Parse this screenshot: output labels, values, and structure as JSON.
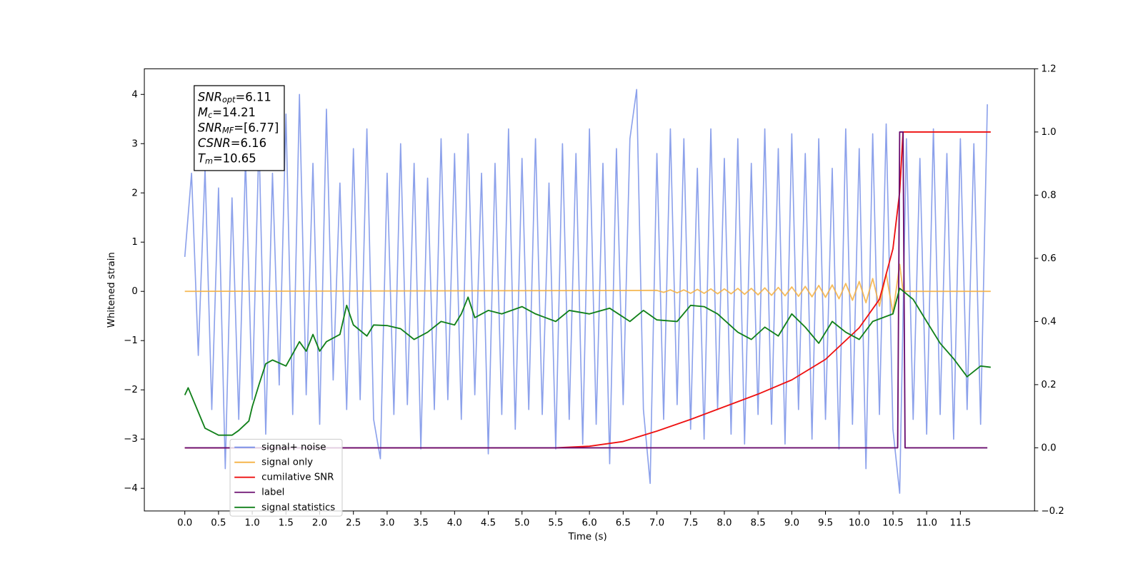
{
  "chart_data": {
    "type": "line",
    "xlabel": "Time (s)",
    "ylabel": "Whitened strain",
    "xlim": [
      -0.6,
      12.6
    ],
    "xticks": [
      {
        "value": 0,
        "label": "0.0"
      },
      0.5,
      {
        "value": 1,
        "label": "1.0"
      },
      1.5,
      {
        "value": 2,
        "label": "2.0"
      },
      2.5,
      {
        "value": 3,
        "label": "3.0"
      },
      3.5,
      {
        "value": 4,
        "label": "4.0"
      },
      4.5,
      {
        "value": 5,
        "label": "5.0"
      },
      5.5,
      {
        "value": 6,
        "label": "6.0"
      },
      6.5,
      {
        "value": 7,
        "label": "7.0"
      },
      7.5,
      {
        "value": 8,
        "label": "8.0"
      },
      8.5,
      {
        "value": 9,
        "label": "9.0"
      },
      9.5,
      {
        "value": 10,
        "label": "10.0"
      },
      10.5,
      {
        "value": 11,
        "label": "11.0"
      },
      11.5
    ],
    "ylim": [
      -4.46,
      4.52
    ],
    "yticks": [
      {
        "value": -4,
        "label": "−4"
      },
      {
        "value": -3,
        "label": "−3"
      },
      {
        "value": -2,
        "label": "−2"
      },
      {
        "value": -1,
        "label": "−1"
      },
      0,
      1,
      2,
      3,
      4
    ],
    "y2lim": [
      -0.2,
      1.2
    ],
    "y2ticks": [
      {
        "value": -0.2,
        "label": "−0.2"
      },
      {
        "value": 0,
        "label": "0.0"
      },
      0.2,
      0.4,
      0.6,
      0.8,
      {
        "value": 1,
        "label": "1.0"
      },
      1.2
    ],
    "legend": "lower left",
    "annotation": [
      {
        "base": "SNR",
        "sub": "opt",
        "text": "=6.11"
      },
      {
        "base": "M",
        "sub": "c",
        "text": "=14.21"
      },
      {
        "base": "SNR",
        "sub": "MF",
        "text": "=[6.77]"
      },
      {
        "base": "CSNR",
        "text": "=6.16"
      },
      {
        "base": "T",
        "sub": "m",
        "text": "=10.65"
      }
    ],
    "series": [
      {
        "name": "signal+ noise",
        "color": "#7890e8",
        "axis": "y",
        "x": [
          0,
          0.1,
          0.2,
          0.3,
          0.4,
          0.5,
          0.6,
          0.7,
          0.8,
          0.9,
          1,
          1.1,
          1.2,
          1.3,
          1.4,
          1.5,
          1.6,
          1.7,
          1.8,
          1.9,
          2,
          2.1,
          2.2,
          2.3,
          2.4,
          2.5,
          2.6,
          2.7,
          2.8,
          2.9,
          3,
          3.1,
          3.2,
          3.3,
          3.4,
          3.5,
          3.6,
          3.7,
          3.8,
          3.9,
          4,
          4.1,
          4.2,
          4.3,
          4.4,
          4.5,
          4.6,
          4.7,
          4.8,
          4.9,
          5,
          5.1,
          5.2,
          5.3,
          5.4,
          5.5,
          5.6,
          5.7,
          5.8,
          5.9,
          6,
          6.1,
          6.2,
          6.3,
          6.4,
          6.5,
          6.6,
          6.7,
          6.8,
          6.9,
          7,
          7.1,
          7.2,
          7.3,
          7.4,
          7.5,
          7.6,
          7.7,
          7.8,
          7.9,
          8,
          8.1,
          8.2,
          8.3,
          8.4,
          8.5,
          8.6,
          8.7,
          8.8,
          8.9,
          9,
          9.1,
          9.2,
          9.3,
          9.4,
          9.5,
          9.6,
          9.7,
          9.8,
          9.9,
          10,
          10.1,
          10.2,
          10.3,
          10.4,
          10.5,
          10.6,
          10.7,
          10.8,
          10.9,
          11,
          11.1,
          11.2,
          11.3,
          11.4,
          11.5,
          11.6,
          11.7,
          11.8,
          11.9
        ],
        "values": [
          0.7,
          2.4,
          -1.3,
          2.5,
          -2.4,
          2.1,
          -3.6,
          1.9,
          -2.6,
          2.7,
          -2.2,
          3.1,
          -2.9,
          2.4,
          -1.9,
          3.6,
          -2.5,
          4.0,
          -2.1,
          2.6,
          -2.7,
          3.7,
          -1.8,
          2.2,
          -2.4,
          2.9,
          -2.2,
          3.3,
          -2.6,
          -3.4,
          2.4,
          -2.5,
          3.0,
          -2.3,
          2.6,
          -3.2,
          2.3,
          -2.4,
          3.1,
          -2.2,
          2.8,
          -2.6,
          3.2,
          -2.1,
          2.4,
          -3.3,
          2.6,
          -2.5,
          3.3,
          -2.8,
          2.7,
          -2.4,
          3.1,
          -2.5,
          2.2,
          -3.2,
          3.0,
          -2.6,
          2.8,
          -3.1,
          3.3,
          -2.7,
          2.6,
          -3.5,
          2.9,
          -2.3,
          3.1,
          4.1,
          -2.4,
          -3.9,
          2.8,
          -2.6,
          3.3,
          -2.3,
          3.1,
          -2.8,
          2.5,
          -3.0,
          3.3,
          -2.4,
          2.7,
          -2.9,
          3.1,
          -3.1,
          2.6,
          -2.5,
          3.3,
          -2.7,
          2.9,
          -3.1,
          3.2,
          -2.4,
          2.8,
          -3.0,
          3.1,
          -2.6,
          2.5,
          -3.2,
          3.3,
          -2.7,
          2.9,
          -3.6,
          3.2,
          -2.5,
          3.4,
          -2.8,
          -4.1,
          3.1,
          -2.6,
          2.7,
          -2.9,
          3.3,
          -2.5,
          2.8,
          -3.0,
          3.1,
          -2.4,
          3.0,
          -2.7,
          3.8
        ]
      },
      {
        "name": "signal only",
        "color": "#f5b041",
        "axis": "y",
        "x": [
          0,
          7,
          7.1,
          7.2,
          7.3,
          7.4,
          7.5,
          7.6,
          7.7,
          7.8,
          7.9,
          8,
          8.1,
          8.2,
          8.3,
          8.4,
          8.5,
          8.6,
          8.7,
          8.8,
          8.9,
          9,
          9.1,
          9.2,
          9.3,
          9.4,
          9.5,
          9.6,
          9.7,
          9.8,
          9.9,
          10,
          10.1,
          10.2,
          10.3,
          10.4,
          10.5,
          10.6,
          10.65,
          11.95
        ],
        "values": [
          0,
          0.02,
          -0.02,
          0.03,
          -0.03,
          0.03,
          -0.04,
          0.04,
          -0.04,
          0.05,
          -0.05,
          0.05,
          -0.05,
          0.06,
          -0.06,
          0.06,
          -0.07,
          0.07,
          -0.08,
          0.08,
          -0.09,
          0.09,
          -0.1,
          0.1,
          -0.11,
          0.12,
          -0.12,
          0.13,
          -0.15,
          0.16,
          -0.18,
          0.2,
          -0.23,
          0.26,
          -0.3,
          0.36,
          -0.45,
          0.55,
          0,
          0
        ]
      },
      {
        "name": "cumilative SNR",
        "color": "#ee1111",
        "axis": "y2",
        "x": [
          0,
          5.5,
          6,
          6.5,
          7,
          7.5,
          8,
          8.5,
          9,
          9.5,
          10,
          10.3,
          10.5,
          10.6,
          10.65,
          11.95
        ],
        "values": [
          0,
          0,
          0.005,
          0.02,
          0.053,
          0.09,
          0.13,
          0.17,
          0.215,
          0.28,
          0.38,
          0.47,
          0.63,
          0.81,
          1,
          1
        ]
      },
      {
        "name": "label",
        "color": "#6a0d6f",
        "axis": "y2",
        "x": [
          0,
          10.57,
          10.6,
          10.65,
          10.68,
          11.9
        ],
        "values": [
          0,
          0,
          1,
          1,
          0,
          0
        ]
      },
      {
        "name": "signal statistics",
        "color": "#11801a",
        "axis": "y2",
        "x": [
          0,
          0.05,
          0.3,
          0.5,
          0.7,
          0.8,
          0.95,
          1,
          1.1,
          1.2,
          1.3,
          1.5,
          1.7,
          1.8,
          1.9,
          2,
          2.1,
          2.3,
          2.4,
          2.5,
          2.7,
          2.8,
          3,
          3.2,
          3.4,
          3.6,
          3.8,
          4,
          4.1,
          4.2,
          4.3,
          4.5,
          4.7,
          5,
          5.2,
          5.5,
          5.7,
          6,
          6.3,
          6.6,
          6.8,
          7,
          7.3,
          7.5,
          7.7,
          7.9,
          8.2,
          8.4,
          8.6,
          8.8,
          9,
          9.2,
          9.4,
          9.6,
          9.8,
          10,
          10.2,
          10.5,
          10.6,
          10.8,
          11,
          11.2,
          11.4,
          11.6,
          11.8,
          11.95
        ],
        "values": [
          0.167,
          0.19,
          0.062,
          0.04,
          0.04,
          0.055,
          0.085,
          0.13,
          0.2,
          0.266,
          0.278,
          0.259,
          0.336,
          0.306,
          0.359,
          0.306,
          0.336,
          0.359,
          0.451,
          0.389,
          0.354,
          0.389,
          0.387,
          0.377,
          0.343,
          0.366,
          0.4,
          0.389,
          0.424,
          0.477,
          0.412,
          0.435,
          0.424,
          0.447,
          0.424,
          0.4,
          0.435,
          0.424,
          0.442,
          0.4,
          0.435,
          0.405,
          0.4,
          0.451,
          0.447,
          0.424,
          0.366,
          0.343,
          0.382,
          0.354,
          0.424,
          0.382,
          0.331,
          0.4,
          0.366,
          0.343,
          0.4,
          0.424,
          0.505,
          0.47,
          0.4,
          0.331,
          0.282,
          0.225,
          0.259,
          0.255
        ]
      }
    ]
  }
}
